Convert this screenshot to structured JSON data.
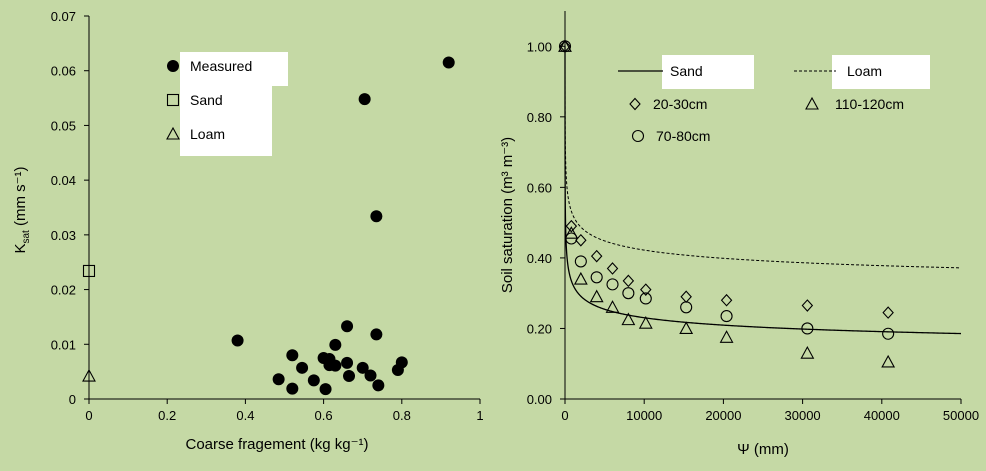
{
  "chart_data": [
    {
      "type": "scatter",
      "xlabel": "Coarse fragement (kg kg⁻¹)",
      "ylabel": "K",
      "ylabel_sub": "sat",
      "ylabel_unit": " (mm s⁻¹)",
      "xlim": [
        0,
        1
      ],
      "ylim": [
        0,
        0.07
      ],
      "x_ticks": [
        "0",
        "0.2",
        "0.4",
        "0.6",
        "0.8",
        "1"
      ],
      "y_ticks": [
        "0",
        "0.01",
        "0.02",
        "0.03",
        "0.04",
        "0.05",
        "0.06",
        "0.07"
      ],
      "grid": false,
      "legend": [
        "Measured",
        "Sand",
        "Loam"
      ],
      "series": [
        {
          "name": "Measured",
          "marker": "filled-circle",
          "points": [
            [
              0.92,
              0.0615
            ],
            [
              0.705,
              0.0548
            ],
            [
              0.735,
              0.0334
            ],
            [
              0.38,
              0.0107
            ],
            [
              0.66,
              0.0133
            ],
            [
              0.735,
              0.0118
            ],
            [
              0.63,
              0.0099
            ],
            [
              0.52,
              0.008
            ],
            [
              0.6,
              0.0075
            ],
            [
              0.615,
              0.0073
            ],
            [
              0.8,
              0.0067
            ],
            [
              0.615,
              0.0062
            ],
            [
              0.66,
              0.0066
            ],
            [
              0.63,
              0.0061
            ],
            [
              0.7,
              0.0057
            ],
            [
              0.545,
              0.0057
            ],
            [
              0.79,
              0.0053
            ],
            [
              0.72,
              0.0043
            ],
            [
              0.665,
              0.0042
            ],
            [
              0.485,
              0.0036
            ],
            [
              0.575,
              0.0034
            ],
            [
              0.52,
              0.0019
            ],
            [
              0.605,
              0.0018
            ],
            [
              0.74,
              0.0025
            ]
          ]
        },
        {
          "name": "Sand",
          "marker": "open-square",
          "points": [
            [
              0,
              0.0234
            ]
          ]
        },
        {
          "name": "Loam",
          "marker": "open-triangle",
          "points": [
            [
              0,
              0.0042
            ]
          ]
        }
      ]
    },
    {
      "type": "line",
      "xlabel": "Ψ (mm)",
      "ylabel": "Soil saturation (m³ m⁻³)",
      "xlim": [
        0,
        50000
      ],
      "ylim": [
        0,
        1.1
      ],
      "x_ticks": [
        "0",
        "10000",
        "20000",
        "30000",
        "40000",
        "50000"
      ],
      "y_ticks": [
        "0.00",
        "0.20",
        "0.40",
        "0.60",
        "0.80",
        "1.00"
      ],
      "grid": false,
      "legend": [
        "Sand",
        "Loam",
        "20-30cm",
        "110-120cm",
        "70-80cm"
      ],
      "series": [
        {
          "name": "Sand",
          "style": "solid-line",
          "model": {
            "a": 0.8,
            "n": 0.19,
            "Sr": 0.06
          },
          "x_max": 50000
        },
        {
          "name": "Loam",
          "style": "dashed-line",
          "model": {
            "a": 0.3,
            "n": 0.16,
            "Sr": 0.2
          },
          "x_max": 50000
        },
        {
          "name": "20-30cm",
          "marker": "open-diamond",
          "points": [
            [
              0,
              1.0
            ],
            [
              800,
              0.49
            ],
            [
              2000,
              0.45
            ],
            [
              4000,
              0.405
            ],
            [
              6000,
              0.37
            ],
            [
              8000,
              0.335
            ],
            [
              10200,
              0.31
            ],
            [
              15300,
              0.29
            ],
            [
              20400,
              0.28
            ],
            [
              30600,
              0.265
            ],
            [
              40800,
              0.245
            ]
          ]
        },
        {
          "name": "70-80cm",
          "marker": "open-circle",
          "points": [
            [
              0,
              1.0
            ],
            [
              800,
              0.455
            ],
            [
              2000,
              0.39
            ],
            [
              4000,
              0.345
            ],
            [
              6000,
              0.325
            ],
            [
              8000,
              0.3
            ],
            [
              10200,
              0.285
            ],
            [
              15300,
              0.26
            ],
            [
              20400,
              0.235
            ],
            [
              30600,
              0.2
            ],
            [
              40800,
              0.185
            ]
          ]
        },
        {
          "name": "110-120cm",
          "marker": "open-triangle",
          "points": [
            [
              0,
              1.0
            ],
            [
              800,
              0.47
            ],
            [
              2000,
              0.34
            ],
            [
              4000,
              0.29
            ],
            [
              6000,
              0.26
            ],
            [
              8000,
              0.225
            ],
            [
              10200,
              0.215
            ],
            [
              15300,
              0.2
            ],
            [
              20400,
              0.175
            ],
            [
              30600,
              0.13
            ],
            [
              40800,
              0.105
            ]
          ]
        }
      ]
    }
  ]
}
